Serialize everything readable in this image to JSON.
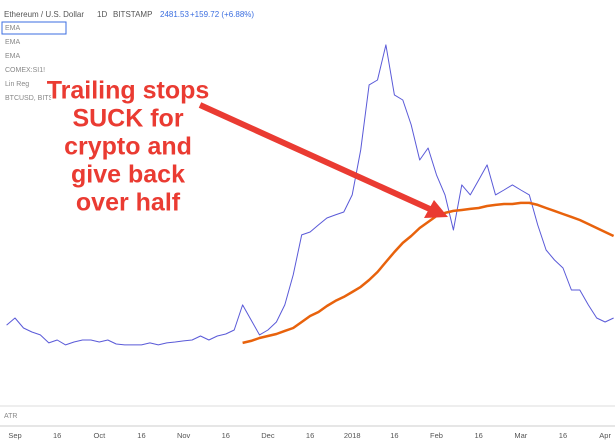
{
  "header": {
    "symbol": "Ethereum / U.S. Dollar",
    "interval": "1D",
    "exchange": "BITSTAMP",
    "price": "2481.53",
    "change": "+159.72 (+6.88%)"
  },
  "indicators": [
    "EMA",
    "EMA",
    "EMA",
    "COMEX:SI1!",
    "Lin Reg",
    "BTCUSD, BITS"
  ],
  "lower_pane": "ATR",
  "chart_data": {
    "type": "line",
    "annotation": [
      "Trailing stops",
      "SUCK for",
      "crypto and",
      "give back",
      "over half"
    ],
    "categories": [
      null,
      "Sep",
      null,
      null,
      null,
      null,
      "16",
      null,
      null,
      null,
      null,
      "Oct",
      null,
      null,
      null,
      null,
      "16",
      null,
      null,
      null,
      null,
      "Nov",
      null,
      null,
      null,
      null,
      "16",
      null,
      null,
      null,
      null,
      "Dec",
      null,
      null,
      null,
      null,
      "16",
      null,
      null,
      null,
      null,
      "2018",
      null,
      null,
      null,
      null,
      "16",
      null,
      null,
      null,
      null,
      "Feb",
      null,
      null,
      null,
      null,
      "16",
      null,
      null,
      null,
      null,
      "Mar",
      null,
      null,
      null,
      null,
      "16",
      null,
      null,
      null,
      null,
      "Apr",
      null
    ],
    "ylim": [
      0,
      1400
    ],
    "series": [
      {
        "color": "#5a5ad8",
        "width": 1,
        "values": [
          262,
          287,
          252,
          238,
          228,
          200,
          210,
          193,
          203,
          210,
          210,
          203,
          210,
          196,
          193,
          193,
          193,
          200,
          193,
          200,
          203,
          207,
          210,
          224,
          210,
          224,
          231,
          245,
          333,
          280,
          228,
          245,
          273,
          333,
          438,
          578,
          588,
          613,
          637,
          648,
          658,
          718,
          875,
          1103,
          1120,
          1243,
          1068,
          1050,
          963,
          840,
          882,
          788,
          718,
          595,
          753,
          718,
          770,
          823,
          718,
          735,
          753,
          735,
          718,
          613,
          525,
          490,
          462,
          385,
          385,
          333,
          287,
          273,
          287
        ]
      },
      {
        "color": "#e8620c",
        "width": 2.5,
        "values": [
          null,
          null,
          null,
          null,
          null,
          null,
          null,
          null,
          null,
          null,
          null,
          null,
          null,
          null,
          null,
          null,
          null,
          null,
          null,
          null,
          null,
          null,
          null,
          null,
          null,
          null,
          null,
          null,
          200,
          207,
          217,
          224,
          231,
          242,
          252,
          273,
          294,
          308,
          329,
          347,
          361,
          378,
          396,
          420,
          448,
          483,
          518,
          550,
          574,
          602,
          623,
          644,
          655,
          662,
          665,
          669,
          672,
          679,
          683,
          686,
          686,
          690,
          690,
          683,
          672,
          662,
          651,
          641,
          630,
          616,
          602,
          588,
          574
        ]
      }
    ]
  }
}
